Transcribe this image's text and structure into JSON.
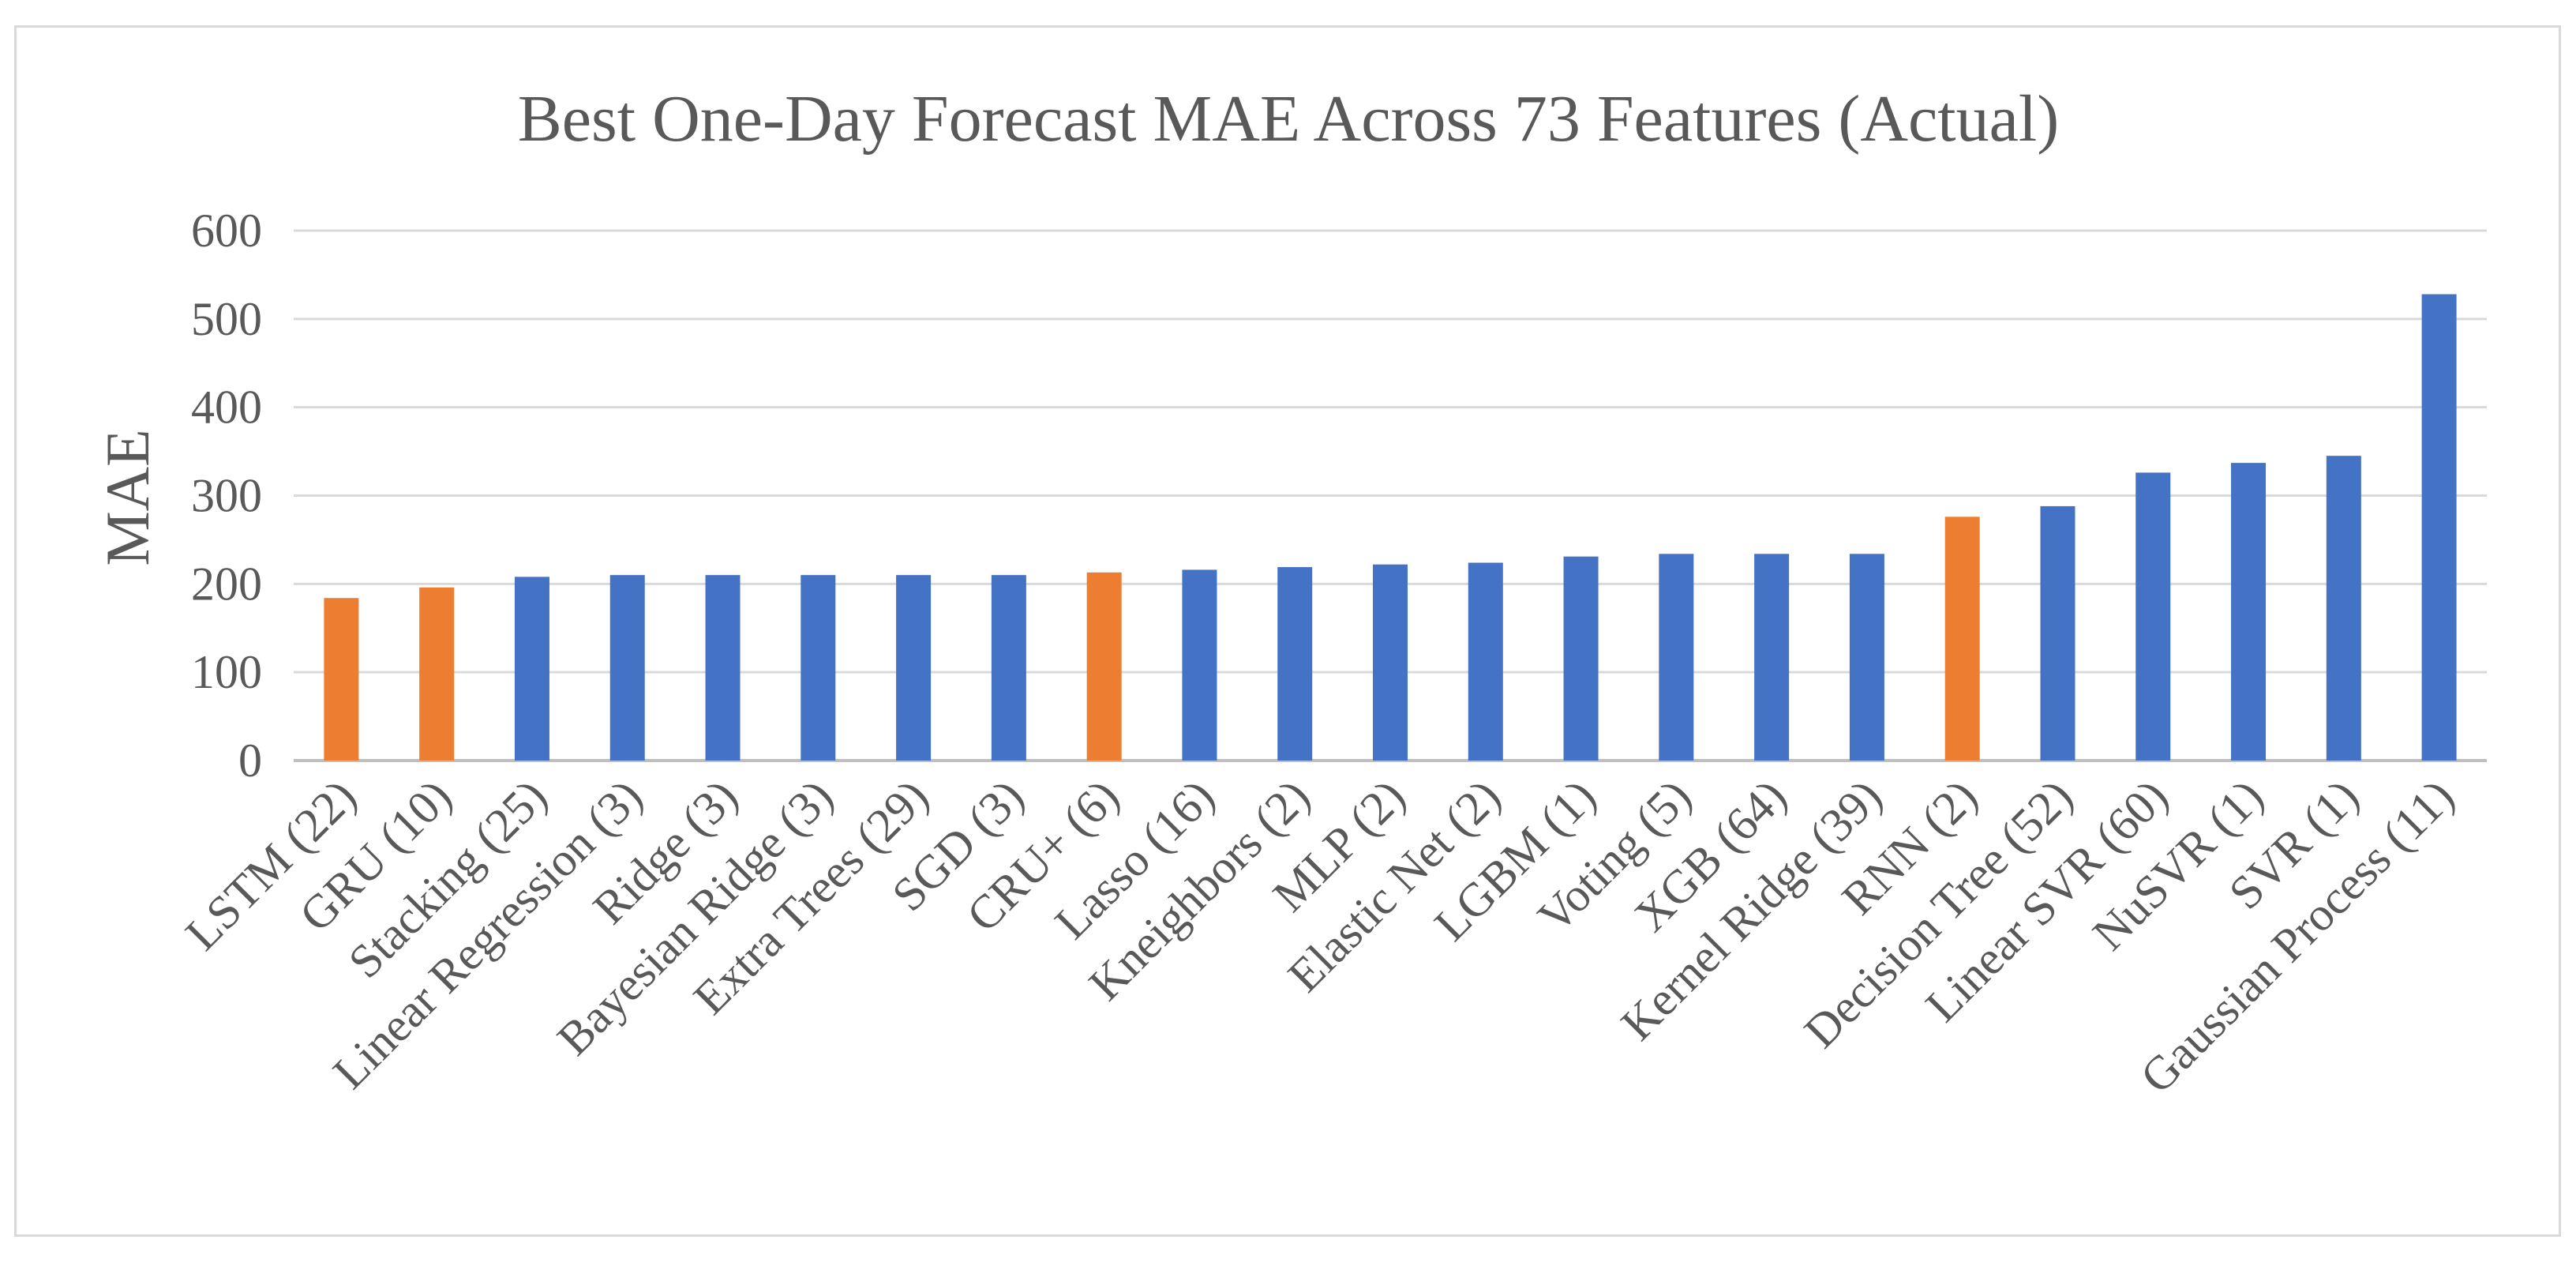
{
  "chart_data": {
    "type": "bar",
    "title": "Best One-Day Forecast MAE Across 73 Features (Actual)",
    "xlabel": "",
    "ylabel": "MAE",
    "ylim": [
      0,
      600
    ],
    "yticks": [
      "0",
      "100",
      "200",
      "300",
      "400",
      "500",
      "600"
    ],
    "grid": true,
    "legend": "none",
    "colors": {
      "deep_learning": "#ed7d31",
      "traditional": "#4472c4"
    },
    "categories": [
      "LSTM (22)",
      "GRU (10)",
      "Stacking (25)",
      "Linear Regression (3)",
      "Ridge (3)",
      "Bayesian Ridge (3)",
      "Extra Trees (29)",
      "SGD (3)",
      "CRU+ (6)",
      "Lasso (16)",
      "Kneighbors (2)",
      "MLP (2)",
      "Elastic Net (2)",
      "LGBM (1)",
      "Voting (5)",
      "XGB (64)",
      "Kernel Ridge (39)",
      "RNN  (2)",
      "Decision Tree (52)",
      "Linear SVR (60)",
      "NuSVR (1)",
      "SVR (1)",
      "Gaussian  Process (11)"
    ],
    "values": [
      184,
      196,
      208,
      210,
      210,
      210,
      210,
      210,
      213,
      216,
      219,
      222,
      224,
      231,
      234,
      234,
      234,
      276,
      288,
      326,
      337,
      345,
      528
    ],
    "bar_groups": [
      "deep_learning",
      "deep_learning",
      "traditional",
      "traditional",
      "traditional",
      "traditional",
      "traditional",
      "traditional",
      "deep_learning",
      "traditional",
      "traditional",
      "traditional",
      "traditional",
      "traditional",
      "traditional",
      "traditional",
      "traditional",
      "deep_learning",
      "traditional",
      "traditional",
      "traditional",
      "traditional",
      "traditional"
    ]
  }
}
